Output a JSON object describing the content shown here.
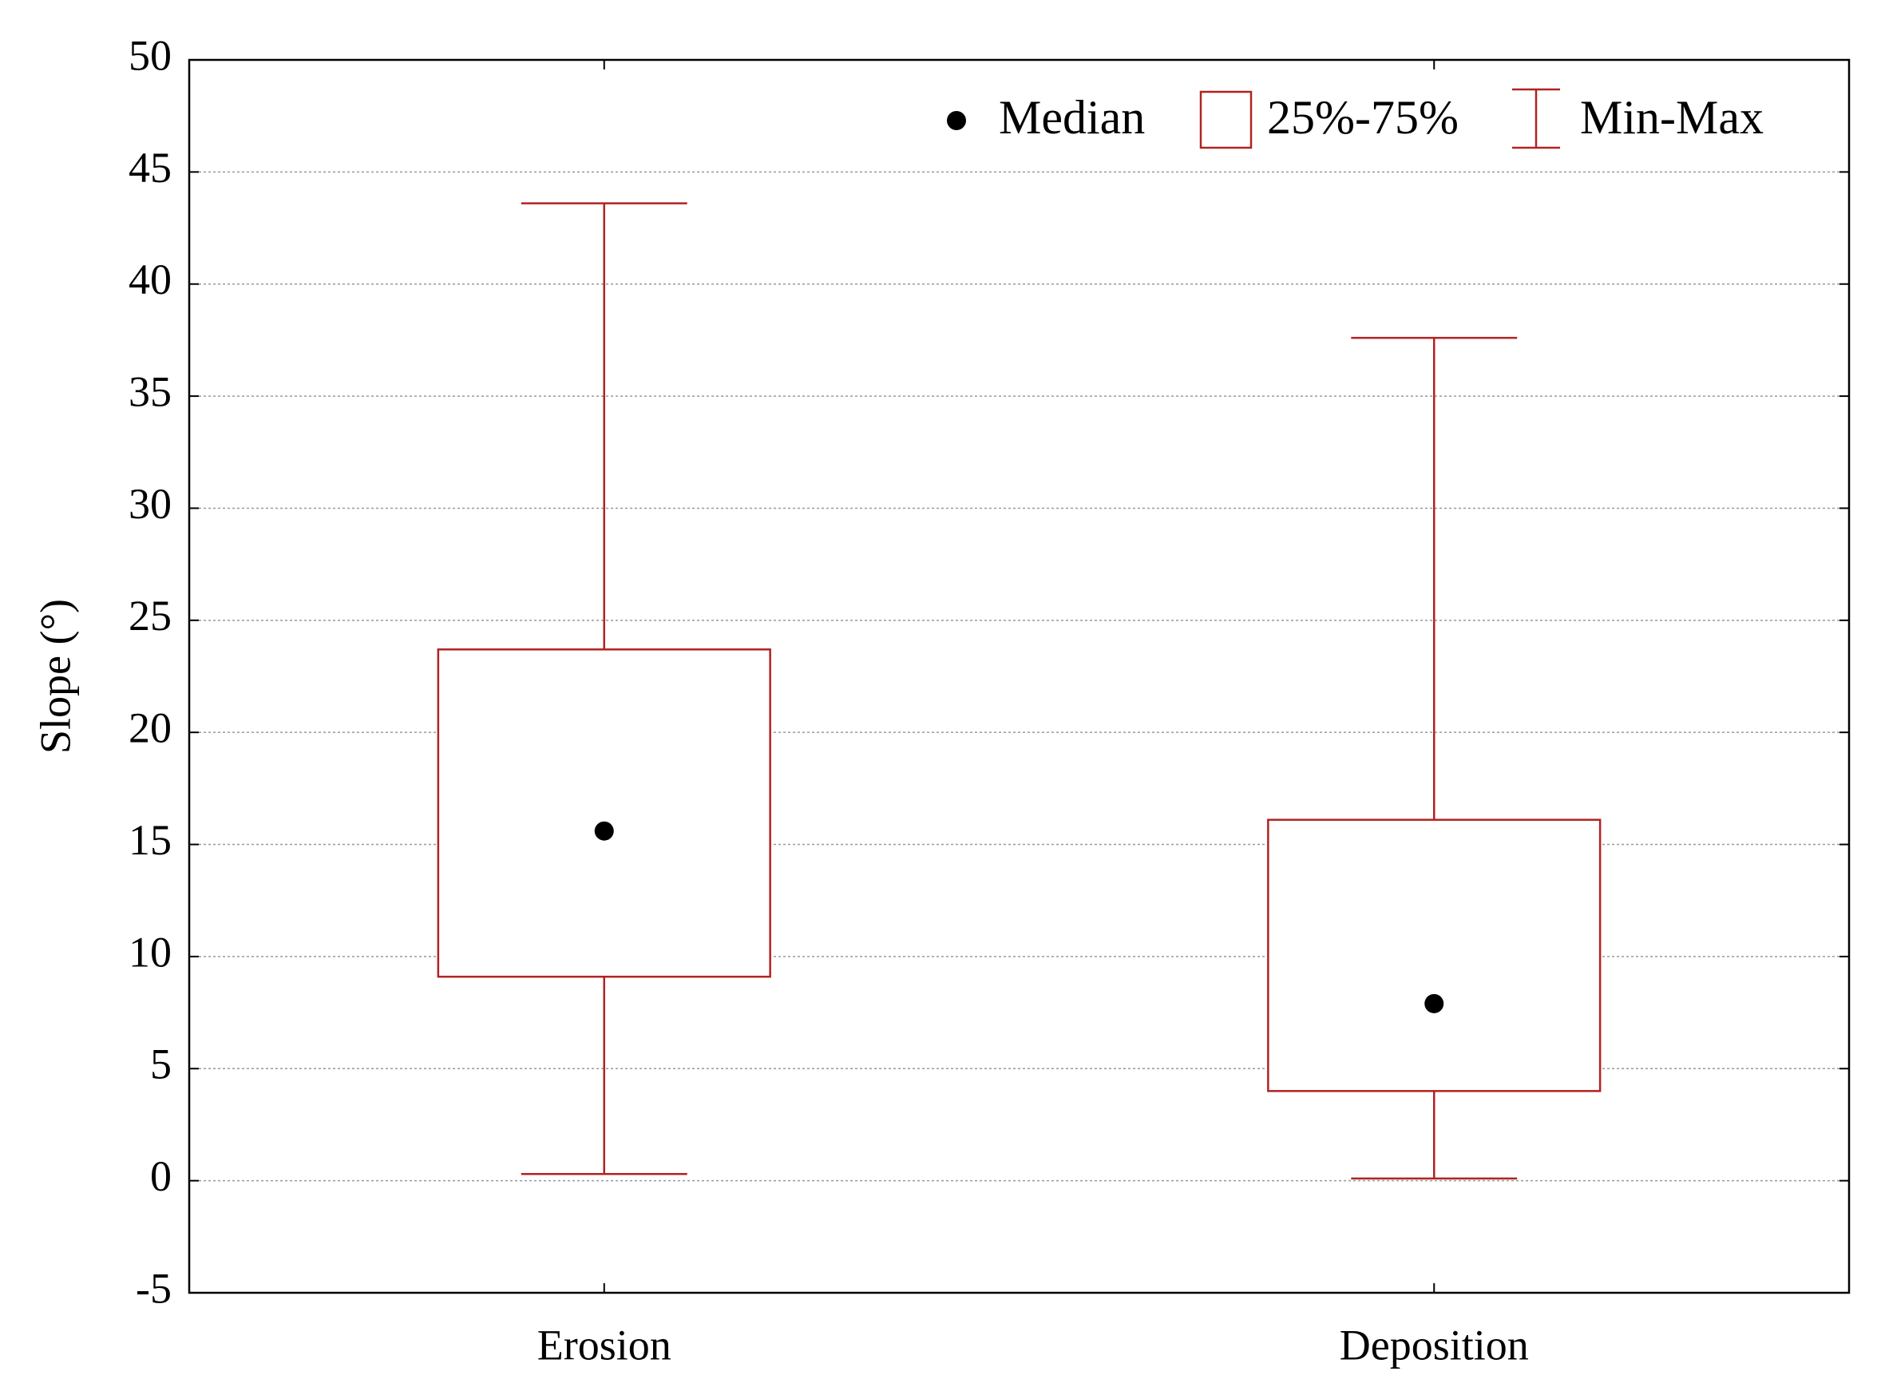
{
  "chart_data": {
    "type": "box",
    "y_label": "Slope (°)",
    "categories": [
      "Erosion",
      "Deposition"
    ],
    "min": [
      0.3,
      0.1
    ],
    "q1": [
      9.1,
      4.0
    ],
    "median": [
      15.6,
      7.9
    ],
    "q3": [
      23.7,
      16.1
    ],
    "max": [
      43.6,
      37.6
    ],
    "color": "#b22222",
    "median_color": "#000000",
    "legend": {
      "median": "Median",
      "box": "25%-75%",
      "range": "Min-Max"
    },
    "ylim": [
      -5,
      50
    ],
    "yticks": [
      -5,
      0,
      5,
      10,
      15,
      20,
      25,
      30,
      35,
      40,
      45,
      50
    ],
    "grid": true
  }
}
